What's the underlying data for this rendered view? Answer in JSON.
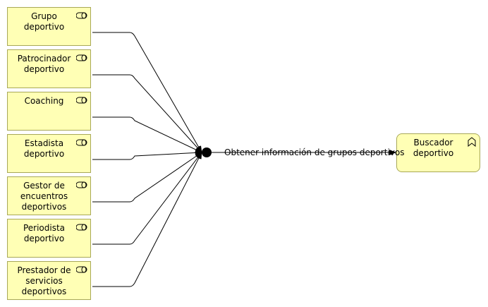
{
  "actors": [
    {
      "id": "grupo",
      "label_lines": [
        "Grupo",
        "deportivo"
      ],
      "icon": "role-icon"
    },
    {
      "id": "patrocinador",
      "label_lines": [
        "Patrocinador",
        "deportivo"
      ],
      "icon": "role-icon"
    },
    {
      "id": "coaching",
      "label_lines": [
        "Coaching"
      ],
      "icon": "role-icon"
    },
    {
      "id": "estadista",
      "label_lines": [
        "Estadista",
        "deportivo"
      ],
      "icon": "role-icon"
    },
    {
      "id": "gestor",
      "label_lines": [
        "Gestor de",
        "encuentros",
        "deportivos"
      ],
      "icon": "role-icon"
    },
    {
      "id": "periodista",
      "label_lines": [
        "Periodista",
        "deportivo"
      ],
      "icon": "role-icon"
    },
    {
      "id": "prestador",
      "label_lines": [
        "Prestador de",
        "servicios",
        "deportivos"
      ],
      "icon": "role-icon"
    }
  ],
  "target": {
    "label_lines": [
      "Buscador",
      "deportivo"
    ],
    "icon": "function-icon"
  },
  "flow": {
    "label": "Obtener información de grupos deportivos"
  },
  "colors": {
    "element_fill": "#ffffb5",
    "element_border": "#a8a857",
    "line": "#000000"
  }
}
